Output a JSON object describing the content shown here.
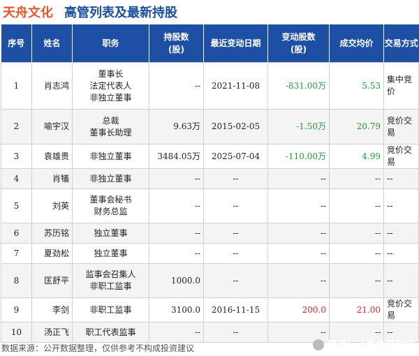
{
  "header": {
    "company": "天舟文化",
    "subtitle": "高管列表及最新持股"
  },
  "columns": [
    "序号",
    "姓名",
    "职务",
    "持股数\n(股)",
    "最近变动日期",
    "变动股数\n(股)",
    "成交均价",
    "交易方式"
  ],
  "rows": [
    {
      "no": "1",
      "name": "肖志鸿",
      "role": "董事长\n法定代表人\n非独立董事",
      "shares": "--",
      "date": "2021-11-08",
      "change": "-831.00万",
      "change_dir": "neg",
      "price": "5.53",
      "price_dir": "neg",
      "mode": "集中竞价"
    },
    {
      "no": "2",
      "name": "喻宇汉",
      "role": "总裁\n董事长助理",
      "shares": "9.63万",
      "date": "2015-02-05",
      "change": "-1.50万",
      "change_dir": "neg",
      "price": "20.79",
      "price_dir": "neg",
      "mode": "竞价交易"
    },
    {
      "no": "3",
      "name": "袁雄贵",
      "role": "非独立董事",
      "shares": "3484.05万",
      "date": "2025-07-04",
      "change": "-110.00万",
      "change_dir": "neg",
      "price": "4.99",
      "price_dir": "neg",
      "mode": "竞价交易"
    },
    {
      "no": "4",
      "name": "肖犠",
      "role": "非独立董事",
      "shares": "--",
      "date": "--",
      "change": "--",
      "change_dir": "",
      "price": "--",
      "price_dir": "",
      "mode": "--"
    },
    {
      "no": "5",
      "name": "刘英",
      "role": "董事会秘书\n财务总监",
      "shares": "--",
      "date": "--",
      "change": "--",
      "change_dir": "",
      "price": "--",
      "price_dir": "",
      "mode": "--"
    },
    {
      "no": "6",
      "name": "苏历铭",
      "role": "独立董事",
      "shares": "--",
      "date": "--",
      "change": "--",
      "change_dir": "",
      "price": "--",
      "price_dir": "",
      "mode": "--"
    },
    {
      "no": "7",
      "name": "夏劲松",
      "role": "独立董事",
      "shares": "--",
      "date": "--",
      "change": "--",
      "change_dir": "",
      "price": "--",
      "price_dir": "",
      "mode": "--"
    },
    {
      "no": "8",
      "name": "匡舒平",
      "role": "监事会召集人\n非职工监事",
      "shares": "1000.0",
      "date": "--",
      "change": "--",
      "change_dir": "",
      "price": "--",
      "price_dir": "",
      "mode": "--"
    },
    {
      "no": "9",
      "name": "李剑",
      "role": "非职工监事",
      "shares": "3100.0",
      "date": "2016-11-15",
      "change": "200.0",
      "change_dir": "pos",
      "price": "21.00",
      "price_dir": "pos",
      "mode": "竞价交易"
    },
    {
      "no": "10",
      "name": "汤正飞",
      "role": "职工代表监事",
      "shares": "--",
      "date": "--",
      "change": "--",
      "change_dir": "",
      "price": "--",
      "price_dir": "",
      "mode": "--"
    }
  ],
  "footer": {
    "source": "数据来源：公开数据整理，仅供参考不构成投资建议",
    "brand": "雪球：证券之星财经"
  },
  "watermark_text": "证券之星"
}
